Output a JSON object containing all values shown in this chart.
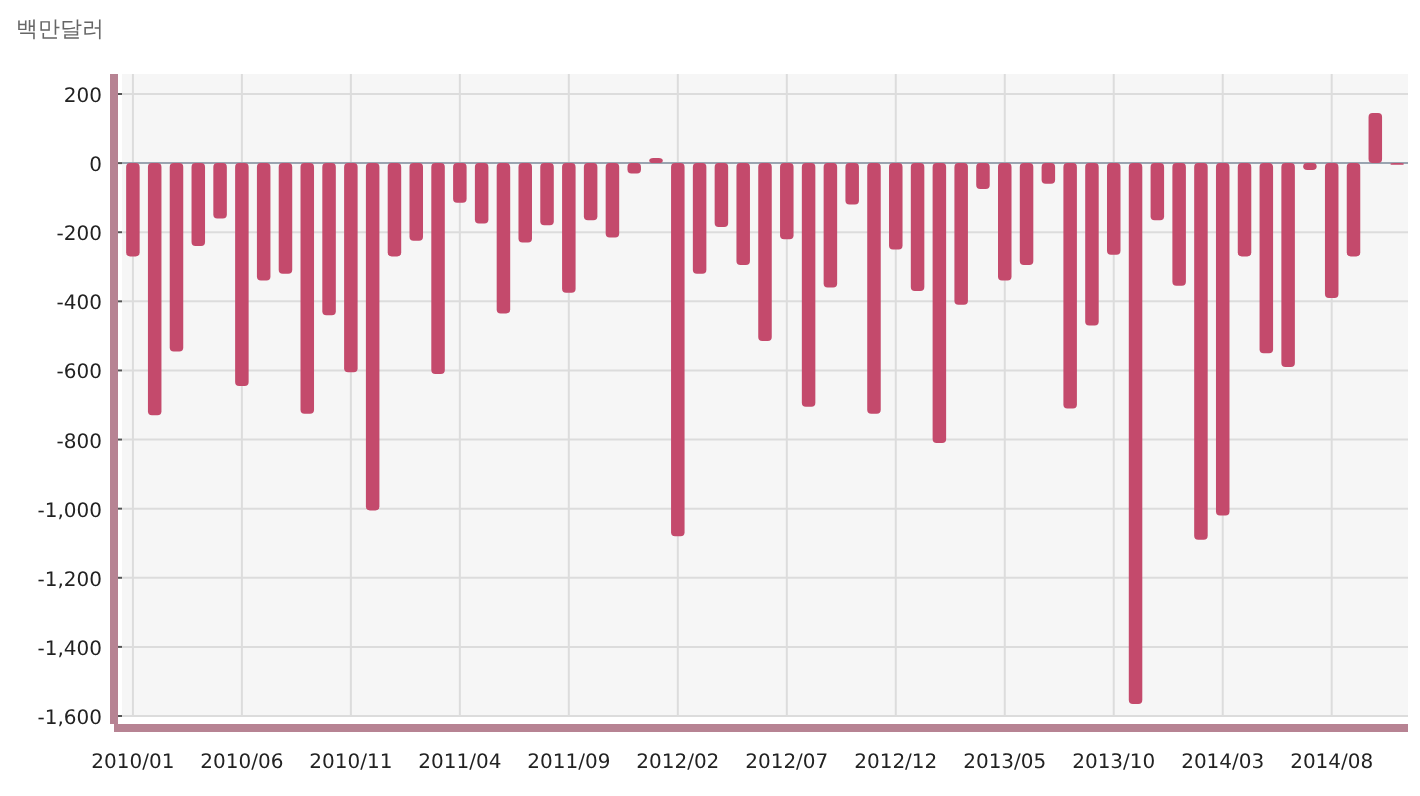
{
  "chart_data": {
    "type": "bar",
    "ylabel": "백만달러",
    "categories": [
      "2010/01",
      null,
      null,
      null,
      null,
      "2010/06",
      null,
      null,
      null,
      null,
      "2010/11",
      null,
      null,
      null,
      null,
      "2011/04",
      null,
      null,
      null,
      null,
      "2011/09",
      null,
      null,
      null,
      null,
      "2012/02",
      null,
      null,
      null,
      null,
      "2012/07",
      null,
      null,
      null,
      null,
      "2012/12",
      null,
      null,
      null,
      null,
      "2013/05",
      null,
      null,
      null,
      null,
      "2013/10",
      null,
      null,
      null,
      null,
      "2014/03",
      null,
      null,
      null,
      null,
      "2014/08",
      null,
      null,
      null
    ],
    "values": [
      -270,
      -730,
      -545,
      -240,
      -160,
      -645,
      -340,
      -320,
      -725,
      -440,
      -605,
      -1005,
      -270,
      -225,
      -610,
      -115,
      -175,
      -435,
      -230,
      -180,
      -375,
      -165,
      -215,
      -30,
      15,
      -1080,
      -320,
      -185,
      -295,
      -515,
      -220,
      -705,
      -360,
      -120,
      -725,
      -250,
      -370,
      -810,
      -410,
      -75,
      -340,
      -295,
      -60,
      -710,
      -470,
      -265,
      -1565,
      -165,
      -355,
      -1090,
      -1020,
      -270,
      -550,
      -590,
      -20,
      -390,
      -270,
      145,
      -5
    ],
    "color": "#c44a6c",
    "ylim": [
      -1600,
      200
    ],
    "yticks": [
      200,
      0,
      {
        "value": -200,
        "label": "-200"
      },
      {
        "value": -400,
        "label": "-400"
      },
      {
        "value": -600,
        "label": "-600"
      },
      {
        "value": -800,
        "label": "-800"
      },
      {
        "value": -1000,
        "label": "-1,000"
      },
      {
        "value": -1200,
        "label": "-1,200"
      },
      {
        "value": -1400,
        "label": "-1,400"
      },
      {
        "value": -1600,
        "label": "-1,600"
      }
    ],
    "grid": true
  }
}
